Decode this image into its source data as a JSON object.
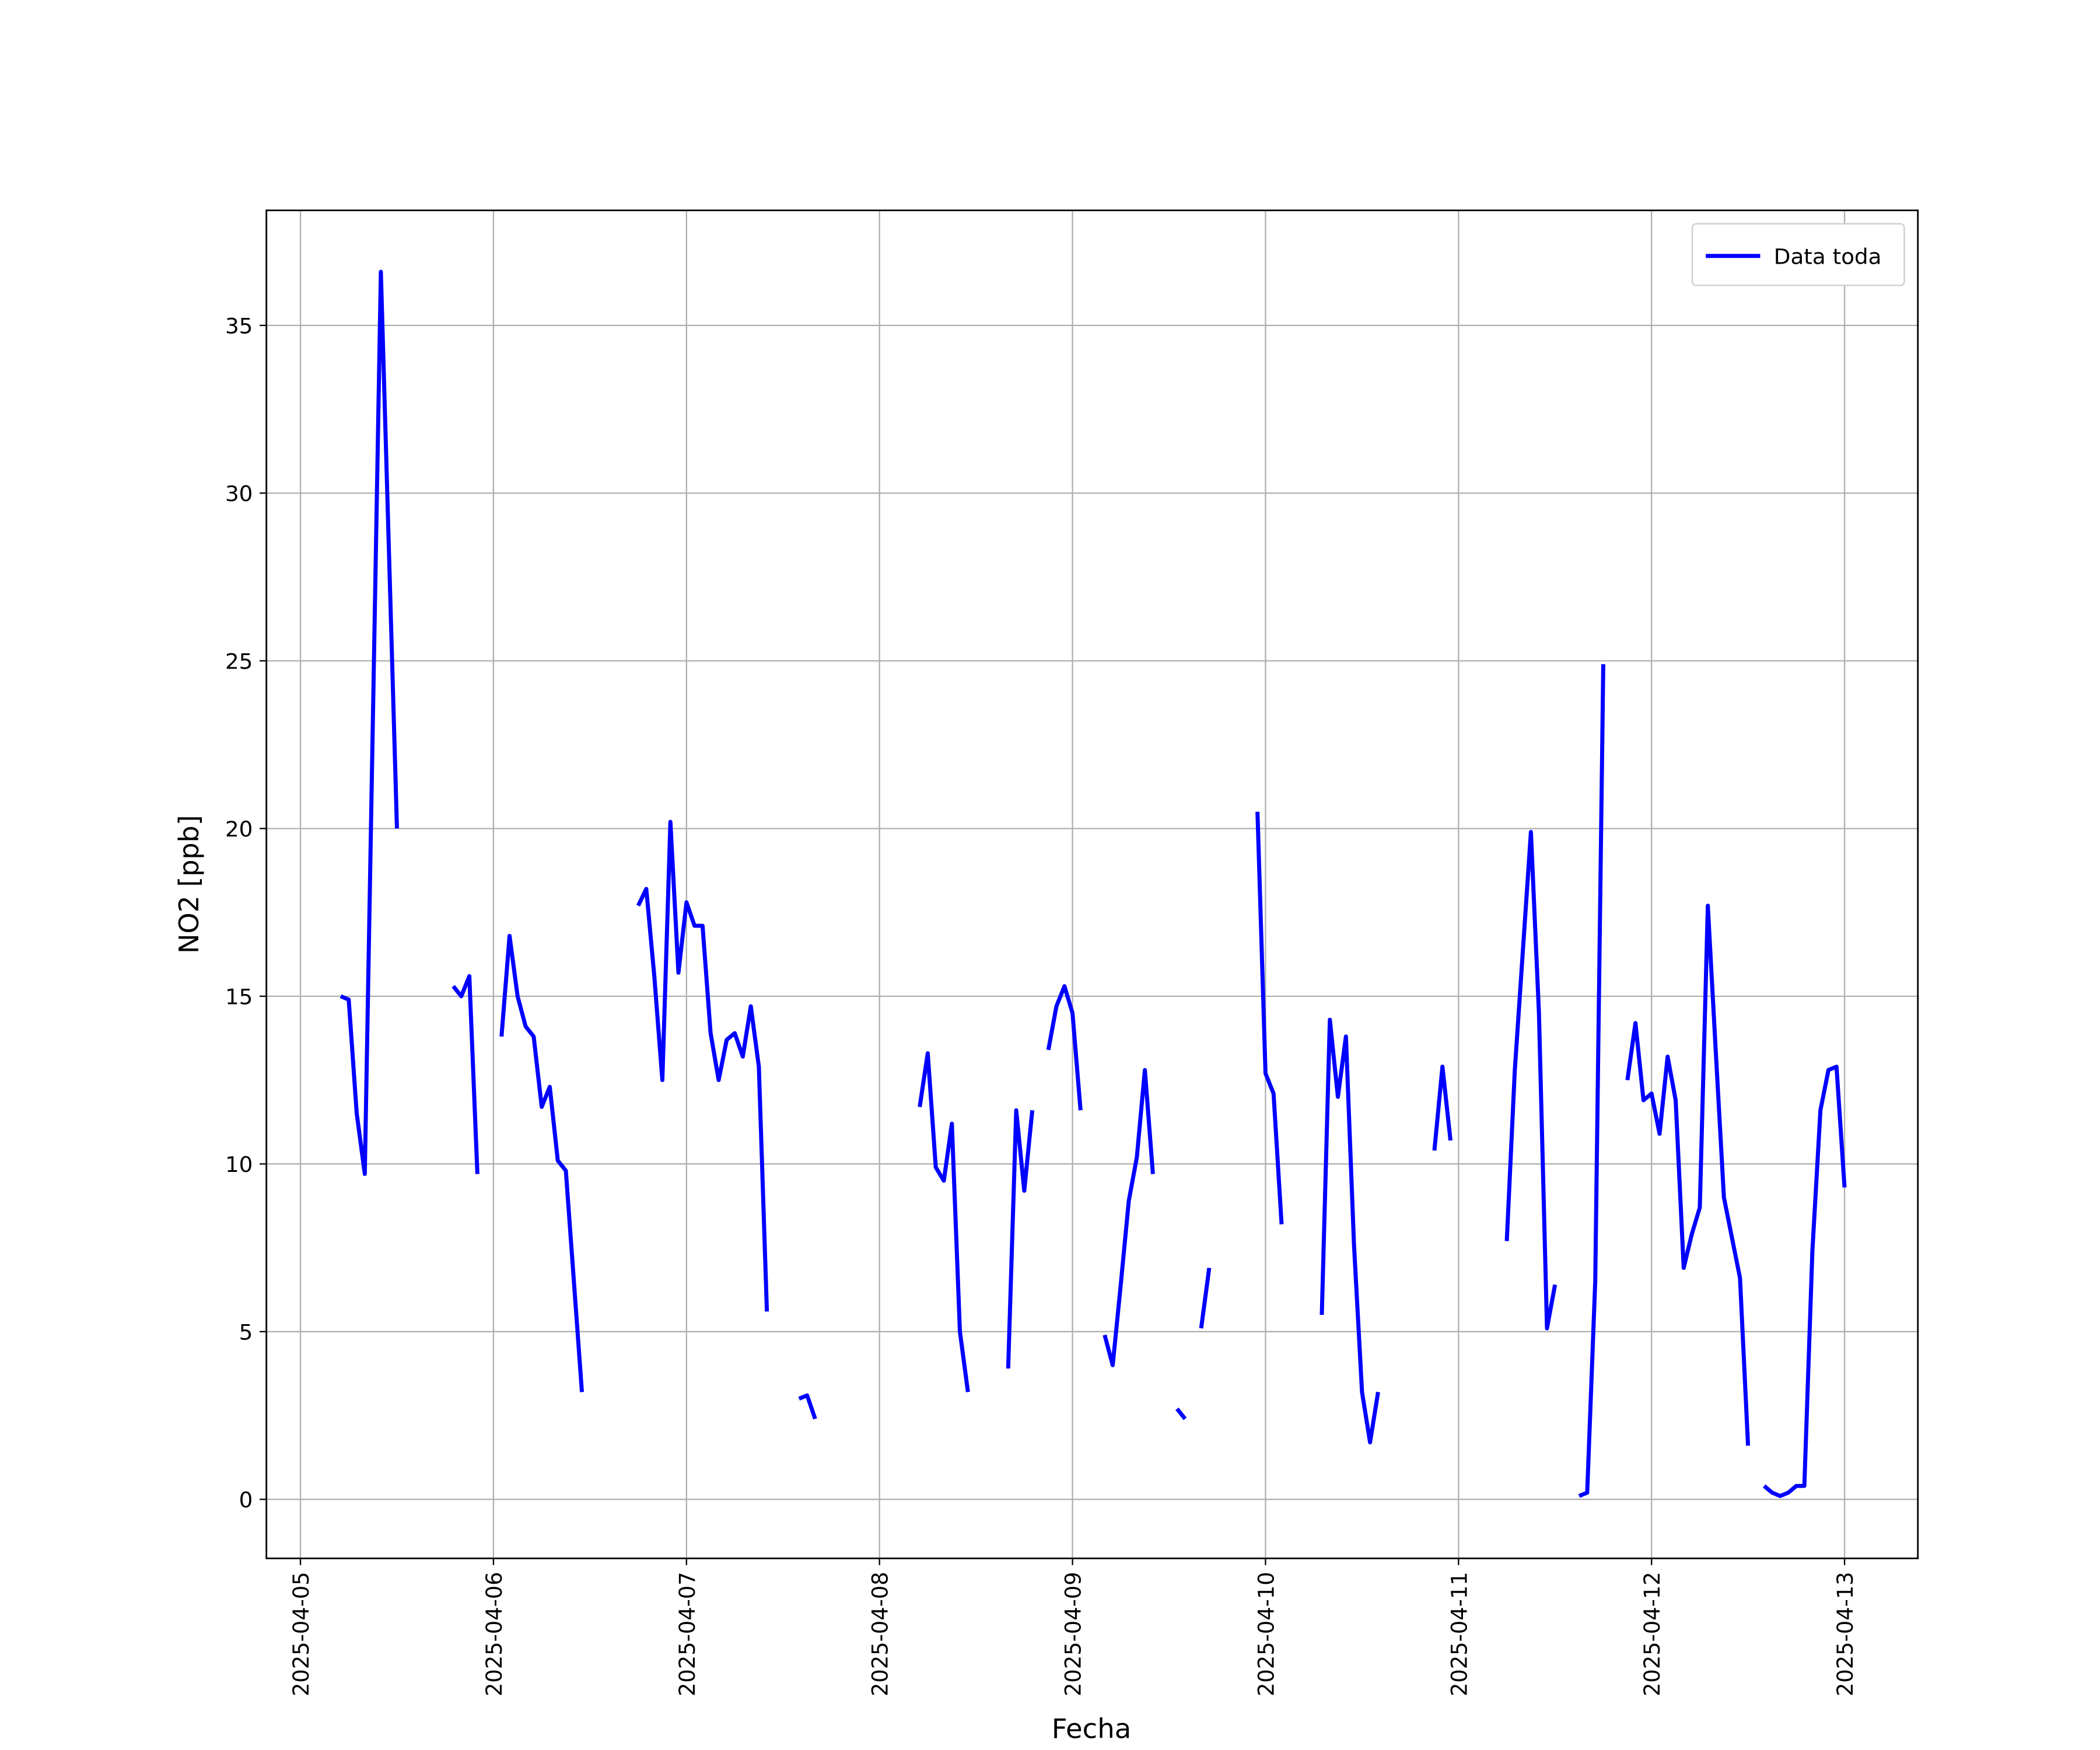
{
  "chart_data": {
    "type": "line",
    "xlabel": "Fecha",
    "ylabel": "NO2 [ppb]",
    "x": [
      "2025-04-05 05:00",
      "2025-04-05 06:00",
      "2025-04-05 07:00",
      "2025-04-05 08:00",
      "2025-04-05 10:00",
      "2025-04-05 12:00",
      "2025-04-05 13:00",
      "2025-04-05 19:00",
      "2025-04-05 20:00",
      "2025-04-05 21:00",
      "2025-04-05 22:00",
      "2025-04-05 23:00",
      "2025-04-06 01:00",
      "2025-04-06 02:00",
      "2025-04-06 03:00",
      "2025-04-06 04:00",
      "2025-04-06 05:00",
      "2025-04-06 06:00",
      "2025-04-06 07:00",
      "2025-04-06 08:00",
      "2025-04-06 09:00",
      "2025-04-06 11:00",
      "2025-04-06 12:00",
      "2025-04-06 18:00",
      "2025-04-06 19:00",
      "2025-04-06 20:00",
      "2025-04-06 21:00",
      "2025-04-06 22:00",
      "2025-04-06 23:00",
      "2025-04-07 00:00",
      "2025-04-07 01:00",
      "2025-04-07 02:00",
      "2025-04-07 03:00",
      "2025-04-07 04:00",
      "2025-04-07 05:00",
      "2025-04-07 06:00",
      "2025-04-07 07:00",
      "2025-04-07 08:00",
      "2025-04-07 09:00",
      "2025-04-07 10:00",
      "2025-04-07 11:00",
      "2025-04-07 14:00",
      "2025-04-07 15:00",
      "2025-04-07 16:00",
      "2025-04-07 17:00",
      "2025-04-08 05:00",
      "2025-04-08 06:00",
      "2025-04-08 07:00",
      "2025-04-08 08:00",
      "2025-04-08 09:00",
      "2025-04-08 10:00",
      "2025-04-08 11:00",
      "2025-04-08 12:00",
      "2025-04-08 16:00",
      "2025-04-08 17:00",
      "2025-04-08 18:00",
      "2025-04-08 19:00",
      "2025-04-08 20:00",
      "2025-04-08 21:00",
      "2025-04-08 22:00",
      "2025-04-08 23:00",
      "2025-04-09 00:00",
      "2025-04-09 01:00",
      "2025-04-09 02:00",
      "2025-04-09 04:00",
      "2025-04-09 05:00",
      "2025-04-09 06:00",
      "2025-04-09 07:00",
      "2025-04-09 08:00",
      "2025-04-09 09:00",
      "2025-04-09 10:00",
      "2025-04-09 11:00",
      "2025-04-09 13:00",
      "2025-04-09 14:00",
      "2025-04-09 15:00",
      "2025-04-09 16:00",
      "2025-04-09 17:00",
      "2025-04-09 18:00",
      "2025-04-09 23:00",
      "2025-04-10 00:00",
      "2025-04-10 01:00",
      "2025-04-10 02:00",
      "2025-04-10 03:00",
      "2025-04-10 07:00",
      "2025-04-10 08:00",
      "2025-04-10 09:00",
      "2025-04-10 10:00",
      "2025-04-10 11:00",
      "2025-04-10 12:00",
      "2025-04-10 13:00",
      "2025-04-10 14:00",
      "2025-04-10 15:00",
      "2025-04-10 21:00",
      "2025-04-10 22:00",
      "2025-04-10 23:00",
      "2025-04-11 00:00",
      "2025-04-11 06:00",
      "2025-04-11 07:00",
      "2025-04-11 09:00",
      "2025-04-11 10:00",
      "2025-04-11 11:00",
      "2025-04-11 12:00",
      "2025-04-11 13:00",
      "2025-04-11 15:00",
      "2025-04-11 16:00",
      "2025-04-11 17:00",
      "2025-04-11 18:00",
      "2025-04-11 19:00",
      "2025-04-11 21:00",
      "2025-04-11 22:00",
      "2025-04-11 23:00",
      "2025-04-12 00:00",
      "2025-04-12 01:00",
      "2025-04-12 02:00",
      "2025-04-12 03:00",
      "2025-04-12 04:00",
      "2025-04-12 05:00",
      "2025-04-12 06:00",
      "2025-04-12 07:00",
      "2025-04-12 08:00",
      "2025-04-12 09:00",
      "2025-04-12 11:00",
      "2025-04-12 12:00",
      "2025-04-12 13:00",
      "2025-04-12 14:00",
      "2025-04-12 15:00",
      "2025-04-12 16:00",
      "2025-04-12 17:00",
      "2025-04-12 18:00",
      "2025-04-12 19:00",
      "2025-04-12 20:00",
      "2025-04-12 21:00",
      "2025-04-12 22:00",
      "2025-04-12 23:00",
      "2025-04-13 00:00"
    ],
    "series": [
      {
        "name": "Data toda",
        "color": "#0000ff",
        "values": [
          15.0,
          14.9,
          11.5,
          9.7,
          36.6,
          20.0,
          null,
          15.3,
          15.0,
          15.6,
          9.7,
          null,
          13.8,
          16.8,
          15.0,
          14.1,
          13.8,
          11.7,
          12.3,
          10.1,
          9.8,
          3.2,
          null,
          17.7,
          18.2,
          15.6,
          12.5,
          20.2,
          15.7,
          17.8,
          17.1,
          17.1,
          13.9,
          12.5,
          13.7,
          13.9,
          13.2,
          14.7,
          12.9,
          5.6,
          null,
          3.0,
          3.1,
          2.4,
          null,
          11.7,
          13.3,
          9.9,
          9.5,
          11.2,
          5.0,
          3.2,
          null,
          3.9,
          11.6,
          9.2,
          11.6,
          null,
          13.4,
          14.7,
          15.3,
          14.5,
          11.6,
          null,
          4.9,
          4.0,
          6.4,
          8.9,
          10.2,
          12.8,
          9.7,
          null,
          2.7,
          2.4,
          null,
          5.1,
          6.9,
          null,
          20.5,
          12.7,
          12.1,
          8.2,
          null,
          5.5,
          14.3,
          12.0,
          13.8,
          7.6,
          3.2,
          1.7,
          3.2,
          null,
          10.4,
          12.9,
          10.7,
          null,
          7.7,
          12.8,
          19.9,
          14.5,
          5.1,
          6.4,
          null,
          0.1,
          0.2,
          6.5,
          24.9,
          null,
          12.5,
          14.2,
          11.9,
          12.1,
          10.9,
          13.2,
          11.9,
          6.9,
          7.9,
          8.7,
          17.7,
          13.3,
          9.0,
          6.6,
          1.6,
          null,
          0.4,
          0.2,
          0.1,
          0.2,
          0.4,
          0.4,
          7.4,
          11.6,
          12.8,
          12.9,
          9.3
        ]
      }
    ],
    "xlim": [
      "2025-04-04 19:46",
      "2025-04-13 09:07"
    ],
    "xticks": [
      "2025-04-05",
      "2025-04-06",
      "2025-04-07",
      "2025-04-08",
      "2025-04-09",
      "2025-04-10",
      "2025-04-11",
      "2025-04-12",
      "2025-04-13"
    ],
    "ylim": [
      -1.76,
      38.43
    ],
    "yticks": [
      0,
      5,
      10,
      15,
      20,
      25,
      30,
      35
    ],
    "grid": true,
    "legend": "upper right"
  }
}
